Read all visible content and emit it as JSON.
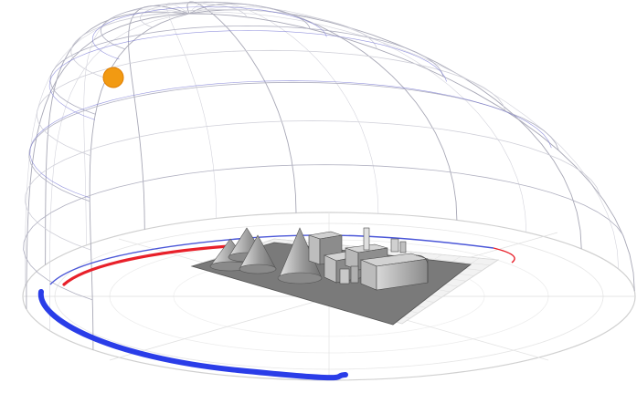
{
  "scene": {
    "description_visible_text": "",
    "colors": {
      "background": "#ffffff",
      "dome_grid": "#c8c8d2",
      "dome_grid_dark": "#9a9aa8",
      "ground_grid": "#d6d6d6",
      "sun": "#f29a12",
      "sun_path_winter": "#2a3de8",
      "sun_path_summer": "#e8202a",
      "model_dark": "#6a6a6a",
      "model_mid": "#9a9a9a",
      "model_light": "#cfcfcf"
    },
    "icons": {
      "sun": "sun-marker-icon"
    }
  }
}
